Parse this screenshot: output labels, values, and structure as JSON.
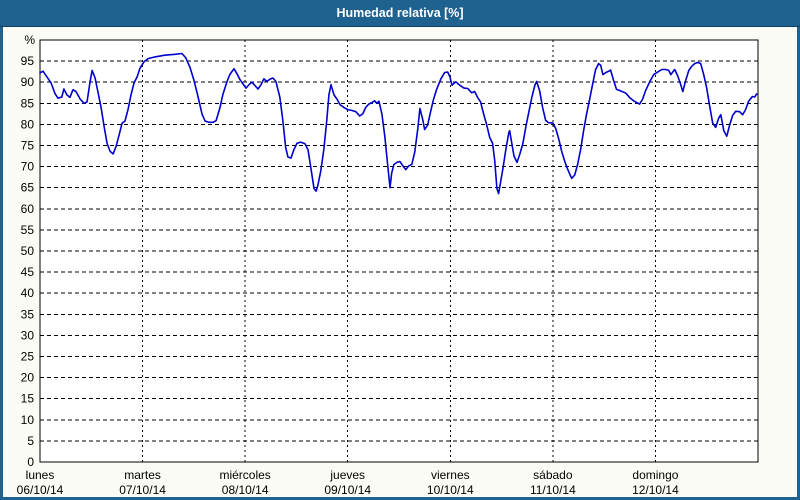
{
  "colors": {
    "title_bar": "#1f618f",
    "frame": "#1f618f",
    "content_bg": "#fcfcf6",
    "title_text": "#ffffff"
  },
  "chart_data": {
    "type": "line",
    "title": "Humedad relativa [%]",
    "unit_label": "%",
    "ylim": [
      0,
      100
    ],
    "ytick_step": 5,
    "ytick_max": 95,
    "x_hours_total": 168,
    "grid": true,
    "legend": "none",
    "axis_color": "#000000",
    "plot_bg": "#ffffff",
    "line_color": "#0000cc",
    "x_days": [
      {
        "name": "lunes",
        "date": "06/10/14"
      },
      {
        "name": "martes",
        "date": "07/10/14"
      },
      {
        "name": "miércoles",
        "date": "08/10/14"
      },
      {
        "name": "jueves",
        "date": "09/10/14"
      },
      {
        "name": "viernes",
        "date": "10/10/14"
      },
      {
        "name": "sábado",
        "date": "11/10/14"
      },
      {
        "name": "domingo",
        "date": "12/10/14"
      }
    ],
    "series": [
      {
        "name": "Humedad relativa",
        "points": [
          [
            0,
            92.2
          ],
          [
            0.7,
            92.6
          ],
          [
            1.6,
            91.3
          ],
          [
            2.6,
            89.8
          ],
          [
            3.5,
            87.3
          ],
          [
            4.2,
            86.2
          ],
          [
            5.1,
            86.5
          ],
          [
            5.6,
            88.4
          ],
          [
            6.3,
            87.0
          ],
          [
            7.0,
            86.4
          ],
          [
            7.7,
            88.2
          ],
          [
            8.4,
            87.8
          ],
          [
            9.4,
            86.0
          ],
          [
            10.3,
            85.0
          ],
          [
            11.0,
            85.3
          ],
          [
            11.7,
            90.0
          ],
          [
            12.2,
            92.8
          ],
          [
            12.9,
            91.0
          ],
          [
            13.6,
            87.5
          ],
          [
            14.3,
            84.0
          ],
          [
            15.0,
            79.5
          ],
          [
            15.7,
            75.5
          ],
          [
            16.4,
            73.6
          ],
          [
            17.1,
            73.0
          ],
          [
            17.8,
            74.8
          ],
          [
            18.5,
            77.5
          ],
          [
            19.2,
            80.3
          ],
          [
            19.9,
            80.8
          ],
          [
            20.6,
            83.5
          ],
          [
            21.3,
            87.0
          ],
          [
            22.0,
            89.8
          ],
          [
            22.7,
            91.2
          ],
          [
            23.4,
            93.3
          ],
          [
            24.3,
            94.8
          ],
          [
            25.3,
            95.6
          ],
          [
            26.9,
            96.0
          ],
          [
            29.2,
            96.4
          ],
          [
            31.6,
            96.6
          ],
          [
            33.2,
            96.8
          ],
          [
            34.1,
            95.8
          ],
          [
            35.1,
            93.5
          ],
          [
            36.0,
            90.5
          ],
          [
            37.0,
            86.5
          ],
          [
            37.9,
            82.5
          ],
          [
            38.6,
            80.8
          ],
          [
            39.5,
            80.5
          ],
          [
            40.5,
            80.5
          ],
          [
            41.2,
            80.9
          ],
          [
            42.1,
            83.9
          ],
          [
            42.8,
            87.1
          ],
          [
            43.7,
            90.0
          ],
          [
            44.4,
            91.8
          ],
          [
            45.4,
            93.2
          ],
          [
            46.1,
            92.0
          ],
          [
            46.8,
            90.6
          ],
          [
            47.5,
            89.6
          ],
          [
            48.2,
            88.6
          ],
          [
            49.1,
            89.6
          ],
          [
            49.6,
            90.0
          ],
          [
            50.3,
            89.2
          ],
          [
            51.0,
            88.4
          ],
          [
            51.7,
            89.4
          ],
          [
            52.4,
            90.8
          ],
          [
            53.1,
            90.2
          ],
          [
            53.8,
            90.7
          ],
          [
            54.5,
            91.0
          ],
          [
            55.2,
            90.2
          ],
          [
            56.1,
            86.5
          ],
          [
            56.8,
            81.0
          ],
          [
            57.5,
            74.5
          ],
          [
            58.0,
            72.3
          ],
          [
            58.7,
            72.0
          ],
          [
            59.4,
            74.0
          ],
          [
            60.1,
            75.5
          ],
          [
            61.0,
            75.8
          ],
          [
            62.0,
            75.4
          ],
          [
            62.7,
            74.0
          ],
          [
            63.4,
            69.5
          ],
          [
            64.1,
            64.8
          ],
          [
            64.6,
            64.2
          ],
          [
            65.0,
            65.5
          ],
          [
            65.7,
            69.0
          ],
          [
            66.4,
            74.0
          ],
          [
            67.1,
            81.0
          ],
          [
            67.6,
            87.0
          ],
          [
            68.1,
            89.4
          ],
          [
            68.8,
            87.0
          ],
          [
            69.5,
            86.0
          ],
          [
            70.2,
            84.7
          ],
          [
            71.1,
            84.0
          ],
          [
            72.0,
            83.5
          ],
          [
            73.0,
            83.3
          ],
          [
            73.9,
            83.0
          ],
          [
            74.8,
            82.0
          ],
          [
            75.5,
            82.5
          ],
          [
            76.2,
            84.0
          ],
          [
            76.9,
            84.8
          ],
          [
            77.7,
            85.2
          ],
          [
            78.3,
            85.6
          ],
          [
            78.8,
            85.0
          ],
          [
            79.3,
            85.5
          ],
          [
            80.0,
            82.5
          ],
          [
            80.7,
            77.0
          ],
          [
            81.2,
            72.0
          ],
          [
            81.9,
            65.0
          ],
          [
            82.3,
            68.5
          ],
          [
            82.8,
            70.5
          ],
          [
            83.5,
            71.0
          ],
          [
            84.2,
            71.2
          ],
          [
            84.9,
            70.2
          ],
          [
            85.6,
            69.3
          ],
          [
            86.3,
            70.2
          ],
          [
            87.0,
            70.5
          ],
          [
            87.7,
            73.5
          ],
          [
            88.4,
            79.0
          ],
          [
            88.9,
            83.8
          ],
          [
            89.6,
            81.0
          ],
          [
            90.0,
            78.8
          ],
          [
            90.7,
            79.8
          ],
          [
            91.4,
            83.0
          ],
          [
            92.1,
            86.0
          ],
          [
            92.8,
            88.3
          ],
          [
            93.8,
            90.8
          ],
          [
            94.7,
            92.3
          ],
          [
            95.4,
            92.4
          ],
          [
            95.9,
            91.3
          ],
          [
            96.4,
            89.3
          ],
          [
            97.3,
            90.1
          ],
          [
            98.2,
            89.3
          ],
          [
            99.2,
            88.6
          ],
          [
            100.1,
            88.5
          ],
          [
            101.0,
            87.5
          ],
          [
            101.7,
            87.8
          ],
          [
            102.4,
            86.4
          ],
          [
            103.1,
            85.3
          ],
          [
            103.8,
            82.5
          ],
          [
            104.5,
            80.0
          ],
          [
            105.2,
            77.0
          ],
          [
            105.9,
            75.5
          ],
          [
            106.4,
            71.5
          ],
          [
            106.9,
            64.8
          ],
          [
            107.3,
            63.6
          ],
          [
            107.8,
            66.5
          ],
          [
            108.3,
            69.5
          ],
          [
            109.0,
            74.0
          ],
          [
            109.7,
            78.0
          ],
          [
            109.9,
            78.5
          ],
          [
            110.4,
            75.5
          ],
          [
            110.9,
            72.5
          ],
          [
            111.6,
            71.0
          ],
          [
            112.3,
            73.0
          ],
          [
            113.0,
            75.5
          ],
          [
            113.7,
            79.5
          ],
          [
            114.4,
            83.0
          ],
          [
            115.1,
            86.5
          ],
          [
            115.8,
            89.3
          ],
          [
            116.2,
            90.2
          ],
          [
            116.9,
            88.0
          ],
          [
            117.6,
            84.0
          ],
          [
            118.3,
            81.0
          ],
          [
            119.0,
            80.4
          ],
          [
            120.0,
            80.3
          ],
          [
            120.7,
            79.0
          ],
          [
            121.4,
            76.5
          ],
          [
            122.1,
            73.5
          ],
          [
            122.8,
            71.2
          ],
          [
            123.5,
            69.3
          ],
          [
            124.4,
            67.2
          ],
          [
            125.1,
            68.0
          ],
          [
            125.8,
            70.5
          ],
          [
            126.5,
            74.0
          ],
          [
            127.2,
            78.5
          ],
          [
            127.9,
            82.5
          ],
          [
            128.6,
            85.9
          ],
          [
            129.3,
            89.5
          ],
          [
            130.0,
            93.0
          ],
          [
            130.7,
            94.4
          ],
          [
            131.2,
            94.0
          ],
          [
            131.7,
            91.8
          ],
          [
            132.4,
            92.3
          ],
          [
            133.1,
            92.6
          ],
          [
            133.5,
            92.9
          ],
          [
            134.2,
            90.5
          ],
          [
            134.9,
            88.3
          ],
          [
            135.7,
            88.0
          ],
          [
            136.4,
            87.7
          ],
          [
            137.1,
            87.4
          ],
          [
            138.0,
            86.3
          ],
          [
            138.9,
            85.6
          ],
          [
            139.6,
            85.2
          ],
          [
            140.3,
            84.8
          ],
          [
            141.0,
            86.0
          ],
          [
            141.7,
            88.0
          ],
          [
            142.7,
            90.2
          ],
          [
            143.6,
            91.8
          ],
          [
            144.5,
            92.4
          ],
          [
            145.5,
            93.0
          ],
          [
            146.4,
            93.0
          ],
          [
            147.1,
            92.8
          ],
          [
            147.6,
            91.8
          ],
          [
            148.5,
            93.0
          ],
          [
            149.2,
            91.5
          ],
          [
            149.9,
            89.5
          ],
          [
            150.4,
            87.8
          ],
          [
            151.1,
            90.5
          ],
          [
            151.8,
            92.8
          ],
          [
            152.5,
            93.8
          ],
          [
            153.2,
            94.4
          ],
          [
            153.9,
            94.7
          ],
          [
            154.6,
            94.4
          ],
          [
            155.3,
            91.8
          ],
          [
            156.0,
            88.6
          ],
          [
            156.7,
            84.3
          ],
          [
            157.4,
            80.3
          ],
          [
            158.1,
            79.3
          ],
          [
            158.8,
            81.5
          ],
          [
            159.3,
            82.3
          ],
          [
            160.0,
            78.5
          ],
          [
            160.7,
            77.2
          ],
          [
            161.4,
            80.0
          ],
          [
            162.1,
            82.2
          ],
          [
            162.8,
            83.1
          ],
          [
            163.7,
            83.0
          ],
          [
            164.4,
            82.3
          ],
          [
            165.1,
            83.5
          ],
          [
            165.8,
            85.5
          ],
          [
            166.7,
            86.6
          ],
          [
            167.2,
            86.5
          ],
          [
            167.7,
            87.2
          ]
        ]
      }
    ]
  }
}
